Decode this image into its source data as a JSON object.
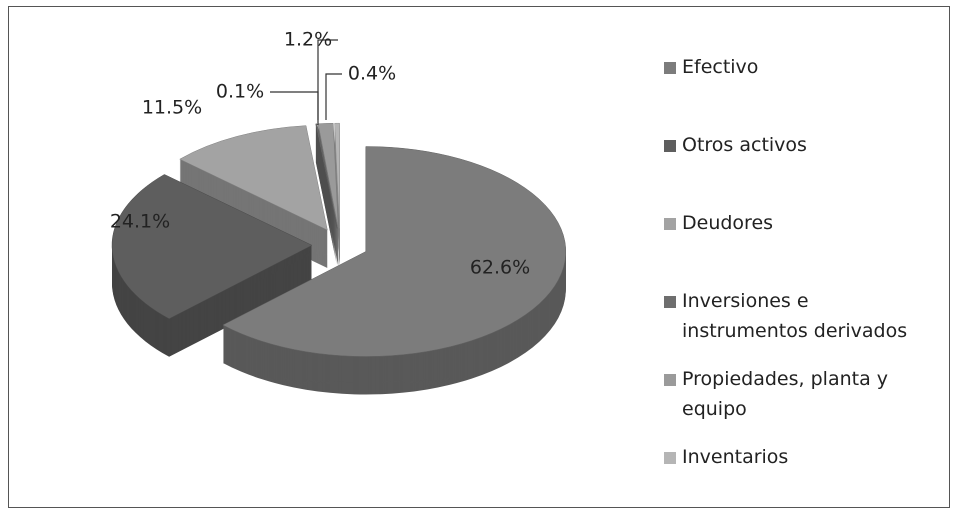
{
  "chart_data": {
    "type": "pie",
    "categories": [
      "Efectivo",
      "Otros activos",
      "Deudores",
      "Inversiones e instrumentos derivados",
      "Propiedades, planta y equipo",
      "Inventarios"
    ],
    "values": [
      62.6,
      24.1,
      11.5,
      0.1,
      1.2,
      0.4
    ],
    "value_labels": [
      "62.6%",
      "24.1%",
      "11.5%",
      "0.1%",
      "1.2%",
      "0.4%"
    ],
    "colors": [
      "#7c7c7c",
      "#5e5e5e",
      "#a3a3a3",
      "#6e6e6e",
      "#9a9a9a",
      "#b5b5b5"
    ],
    "legend": "right"
  }
}
